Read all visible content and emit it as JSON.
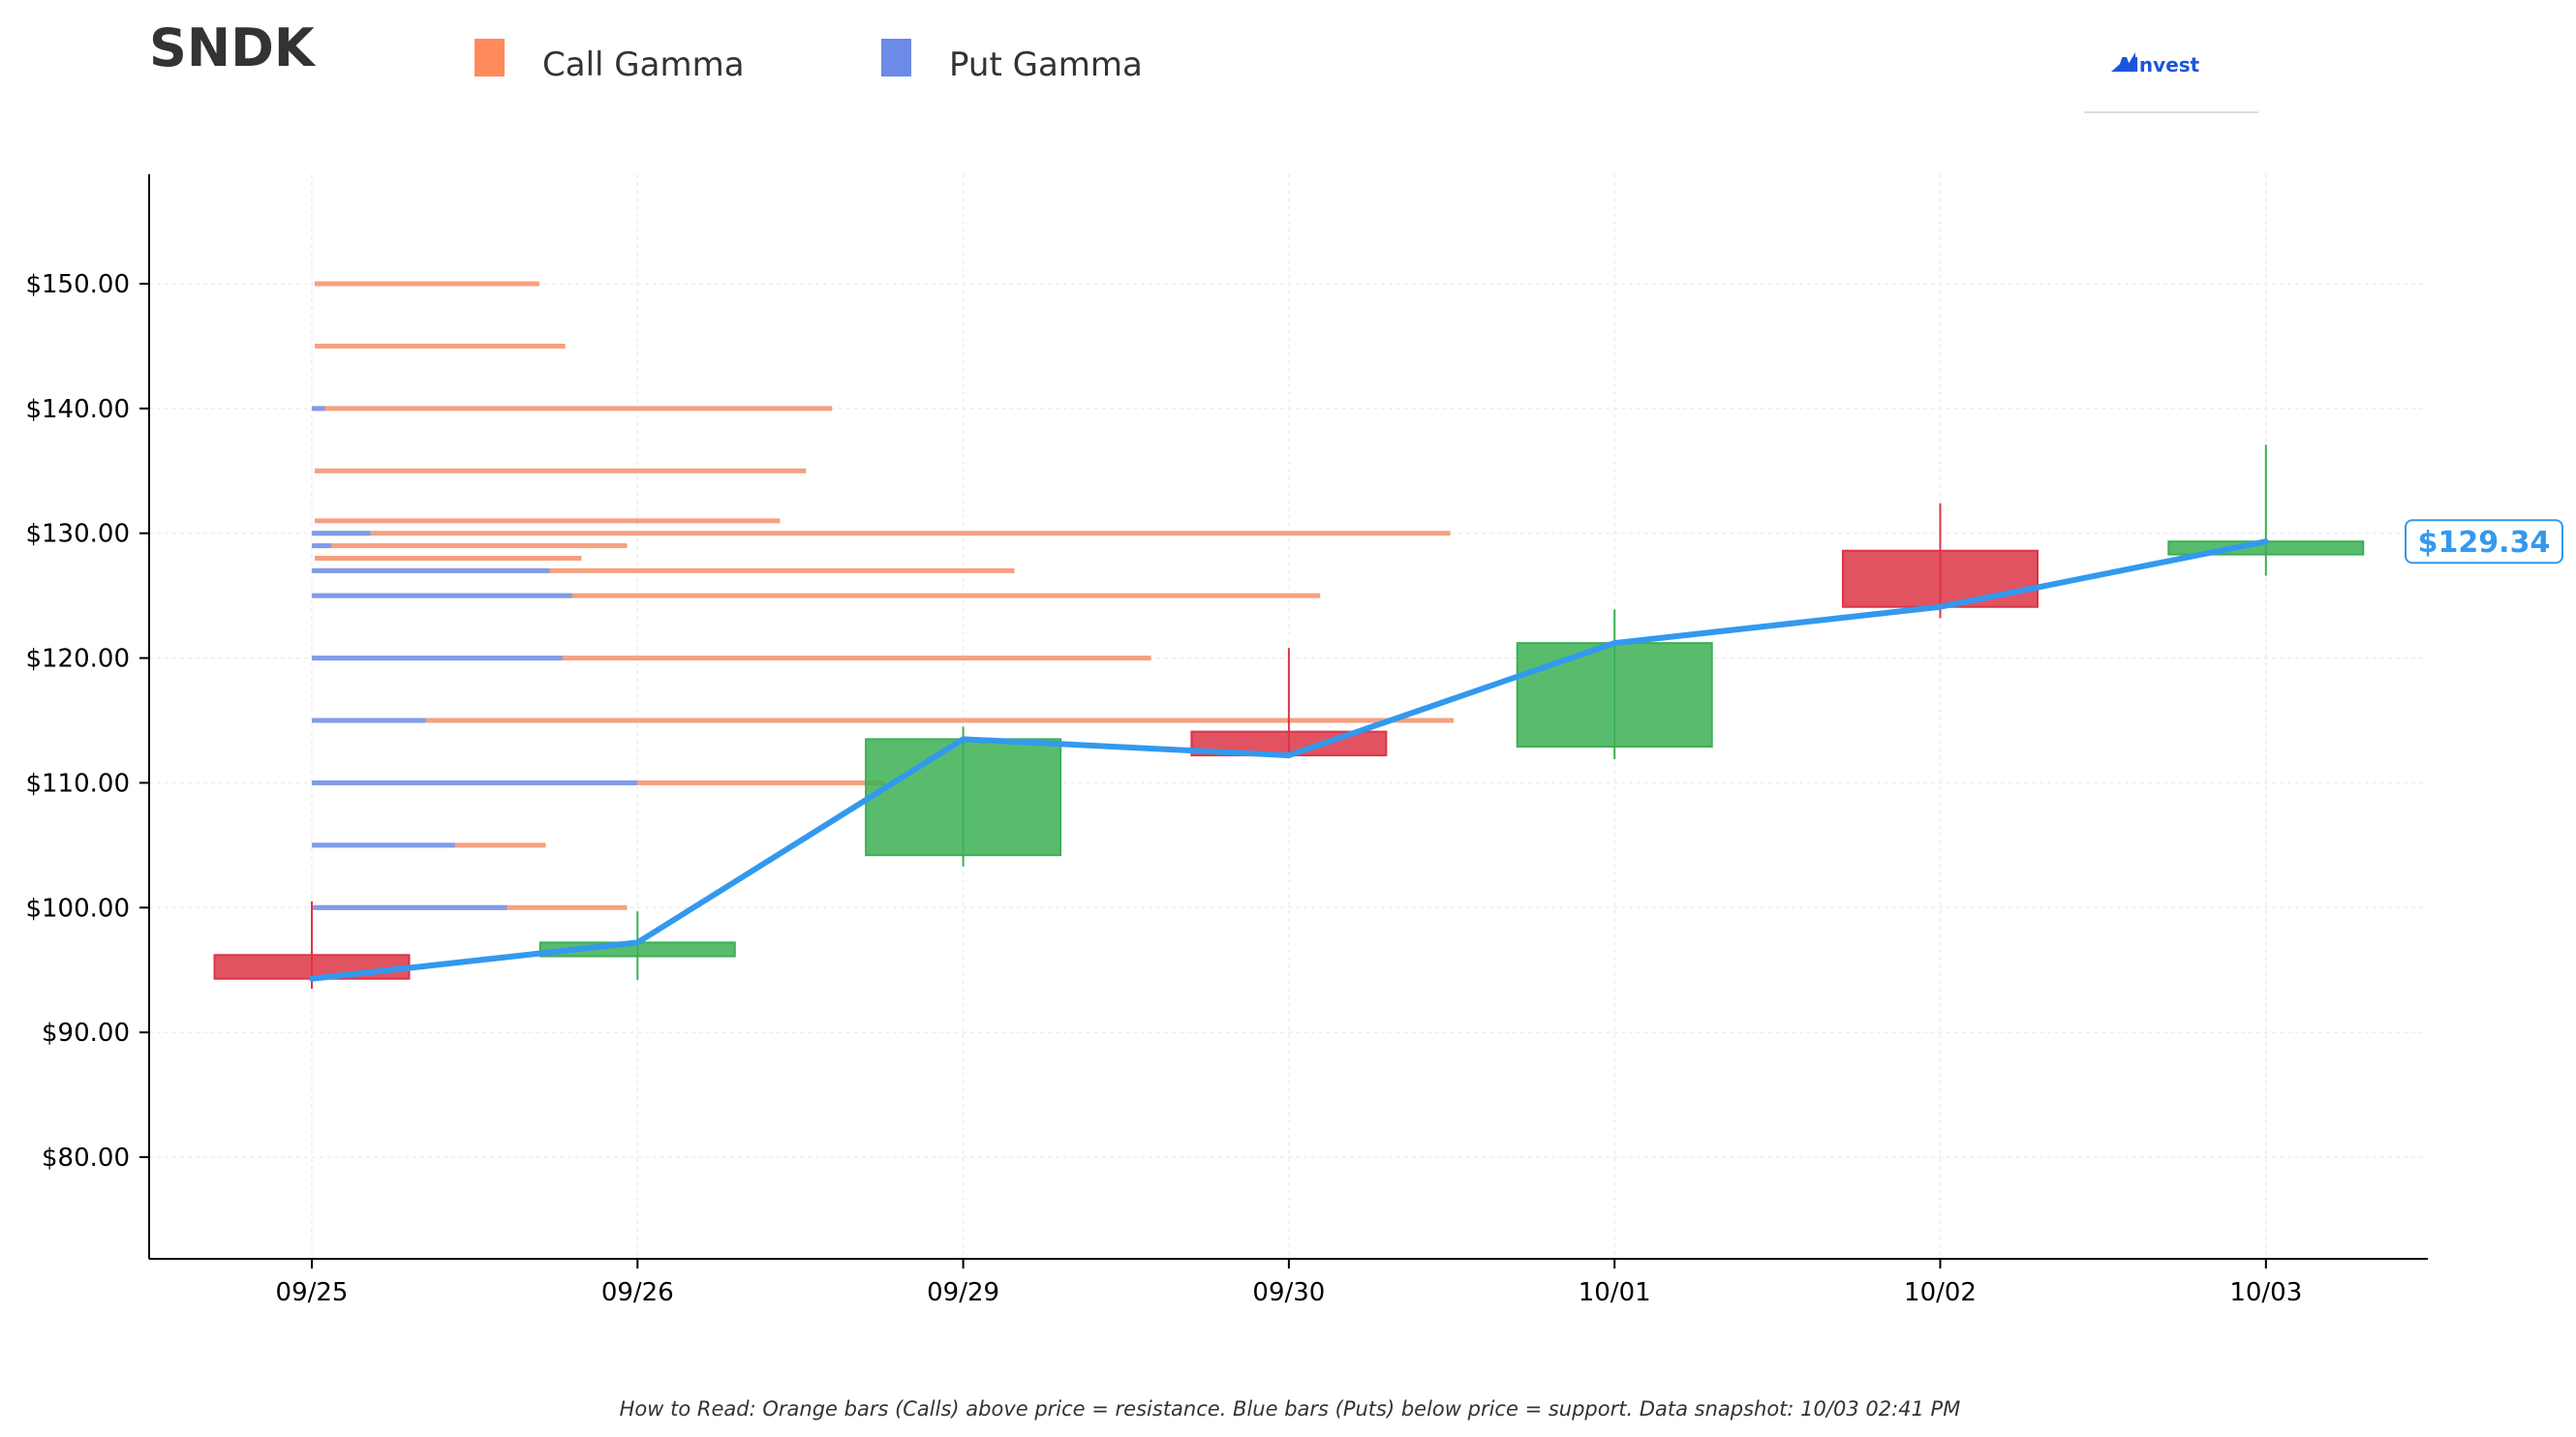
{
  "ticker": "SNDK",
  "legend": [
    {
      "label": "Call Gamma",
      "color": "#ff8a5b"
    },
    {
      "label": "Put Gamma",
      "color": "#6b8be6"
    }
  ],
  "logo": {
    "text": "AInvest",
    "color": "#1a56db"
  },
  "footnote": "How to Read: Orange bars (Calls) above price = resistance. Blue bars (Puts) below price = support. Data snapshot: 10/03 02:41 PM",
  "colors": {
    "up": "#3cb054",
    "down": "#dc3545",
    "price_line": "#3399ee",
    "call": "#f5a080",
    "put": "#7f9ce8",
    "grid": "#eeeeee"
  },
  "chart_data": {
    "type": "candlestick",
    "ylim": [
      72,
      159
    ],
    "yticks": [
      80,
      90,
      100,
      110,
      120,
      130,
      140,
      150
    ],
    "ytick_labels": [
      "$80.00",
      "$90.00",
      "$100.00",
      "$110.00",
      "$120.00",
      "$130.00",
      "$140.00",
      "$150.00"
    ],
    "dates": [
      "09/25",
      "09/26",
      "09/29",
      "09/30",
      "10/01",
      "10/02",
      "10/03"
    ],
    "candles": [
      {
        "date": "09/25",
        "open": 96.2,
        "high": 100.5,
        "low": 93.5,
        "close": 94.3
      },
      {
        "date": "09/26",
        "open": 96.1,
        "high": 99.7,
        "low": 94.2,
        "close": 97.2
      },
      {
        "date": "09/29",
        "open": 104.2,
        "high": 114.5,
        "low": 103.3,
        "close": 113.5
      },
      {
        "date": "09/30",
        "open": 114.1,
        "high": 120.8,
        "low": 112.2,
        "close": 112.2
      },
      {
        "date": "10/01",
        "open": 112.9,
        "high": 123.9,
        "low": 111.9,
        "close": 121.2
      },
      {
        "date": "10/02",
        "open": 128.6,
        "high": 132.4,
        "low": 123.2,
        "close": 124.1
      },
      {
        "date": "10/03",
        "open": 128.3,
        "high": 137.1,
        "low": 126.6,
        "close": 129.34
      }
    ],
    "last_price_label": "$129.34",
    "gamma_levels": [
      {
        "strike": 150,
        "put": 0.0,
        "call": 0.69
      },
      {
        "strike": 145,
        "put": 0.0,
        "call": 0.77
      },
      {
        "strike": 140,
        "put": 0.04,
        "call": 1.59
      },
      {
        "strike": 135,
        "put": 0.0,
        "call": 1.51
      },
      {
        "strike": 131,
        "put": 0.0,
        "call": 1.43
      },
      {
        "strike": 130,
        "put": 0.18,
        "call": 3.49
      },
      {
        "strike": 129,
        "put": 0.06,
        "call": 0.96
      },
      {
        "strike": 128,
        "put": 0.0,
        "call": 0.82
      },
      {
        "strike": 127,
        "put": 0.73,
        "call": 2.15
      },
      {
        "strike": 125,
        "put": 0.8,
        "call": 3.09
      },
      {
        "strike": 120,
        "put": 0.77,
        "call": 2.57
      },
      {
        "strike": 115,
        "put": 0.35,
        "call": 3.5
      },
      {
        "strike": 110,
        "put": 1.0,
        "call": 1.75
      },
      {
        "strike": 105,
        "put": 0.44,
        "call": 0.71
      },
      {
        "strike": 100,
        "put": 0.6,
        "call": 0.96
      }
    ]
  }
}
